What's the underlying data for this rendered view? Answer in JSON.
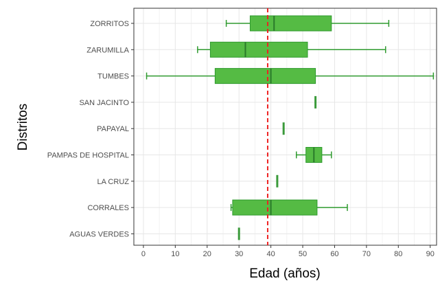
{
  "chart_data": {
    "type": "boxplot",
    "title": "",
    "xlabel": "Edad (años)",
    "ylabel": "Distritos",
    "xlim": [
      -3,
      92
    ],
    "xticks": [
      0,
      10,
      20,
      30,
      40,
      50,
      60,
      70,
      80,
      90
    ],
    "grid": true,
    "reference_line": {
      "x": 39,
      "style": "dashed",
      "color": "#ee2222"
    },
    "box_color": "#55bb44",
    "box_border_color": "#2e9a2e",
    "categories": [
      {
        "name": "ZORRITOS",
        "min": 26,
        "q1": 33.5,
        "median": 41,
        "q3": 59,
        "max": 77
      },
      {
        "name": "ZARUMILLA",
        "min": 17,
        "q1": 21,
        "median": 32,
        "q3": 51.5,
        "max": 76
      },
      {
        "name": "TUMBES",
        "min": 1,
        "q1": 22.5,
        "median": 40,
        "q3": 54,
        "max": 91
      },
      {
        "name": "SAN JACINTO",
        "min": 54,
        "q1": 54,
        "median": 54,
        "q3": 54,
        "max": 54
      },
      {
        "name": "PAPAYAL",
        "min": 44,
        "q1": 44,
        "median": 44,
        "q3": 44,
        "max": 44
      },
      {
        "name": "PAMPAS DE HOSPITAL",
        "min": 48,
        "q1": 51,
        "median": 53.5,
        "q3": 56,
        "max": 59
      },
      {
        "name": "LA CRUZ",
        "min": 42,
        "q1": 42,
        "median": 42,
        "q3": 42,
        "max": 42
      },
      {
        "name": "CORRALES",
        "min": 27.5,
        "q1": 28,
        "median": 40,
        "q3": 54.5,
        "max": 64
      },
      {
        "name": "AGUAS VERDES",
        "min": 30,
        "q1": 30,
        "median": 30,
        "q3": 30,
        "max": 30
      }
    ]
  }
}
